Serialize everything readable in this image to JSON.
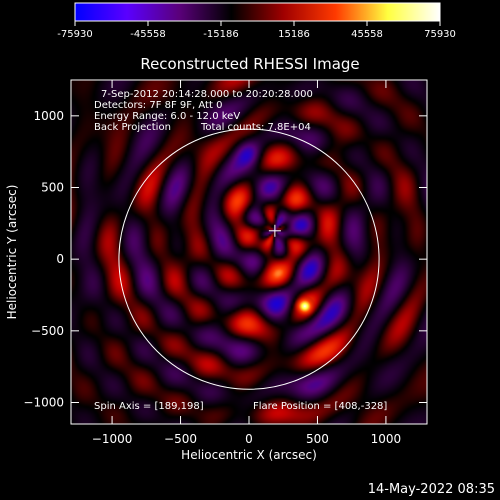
{
  "colorbar": {
    "ticks": [
      "-75930",
      "-45558",
      "-15186",
      "15186",
      "45558",
      "75930"
    ],
    "stops": [
      "#0000ff",
      "#5a00ff",
      "#5a007a",
      "#000000",
      "#a00000",
      "#ff3a00",
      "#ffff40",
      "#ffffff"
    ]
  },
  "chart_data": {
    "type": "heatmap",
    "title": "Reconstructed RHESSI Image",
    "xlabel": "Heliocentric X (arcsec)",
    "ylabel": "Heliocentric Y (arcsec)",
    "xlim": [
      -1300,
      1300
    ],
    "ylim": [
      -1150,
      1250
    ],
    "x_ticks": [
      -1000,
      -500,
      0,
      500,
      1000
    ],
    "y_ticks": [
      -1000,
      -500,
      0,
      500,
      1000
    ],
    "x_tick_labels": [
      "−1000",
      "−500",
      "0",
      "500",
      "1000"
    ],
    "y_tick_labels": [
      "−1000",
      "−500",
      "0",
      "500",
      "1000"
    ],
    "value_range": [
      -75930,
      75930
    ],
    "solar_disk_radius_arcsec": 950,
    "spin_axis": [
      189,
      198
    ],
    "flare_position": [
      408,
      -328
    ],
    "annotations": {
      "time_range": "7-Sep-2012 20:14:28.000 to 20:20:28.000",
      "detectors": "Detectors: 7F 8F 9F, Att 0",
      "energy": "Energy Range: 6.0 - 12.0 keV",
      "method": "Back Projection",
      "counts": "Total counts: 7.8E+04",
      "spin_axis_label": "Spin Axis = [189,198]",
      "flare_label": "Flare Position = [408,-328]"
    }
  },
  "footer": {
    "timestamp": "14-May-2022 08:35"
  }
}
